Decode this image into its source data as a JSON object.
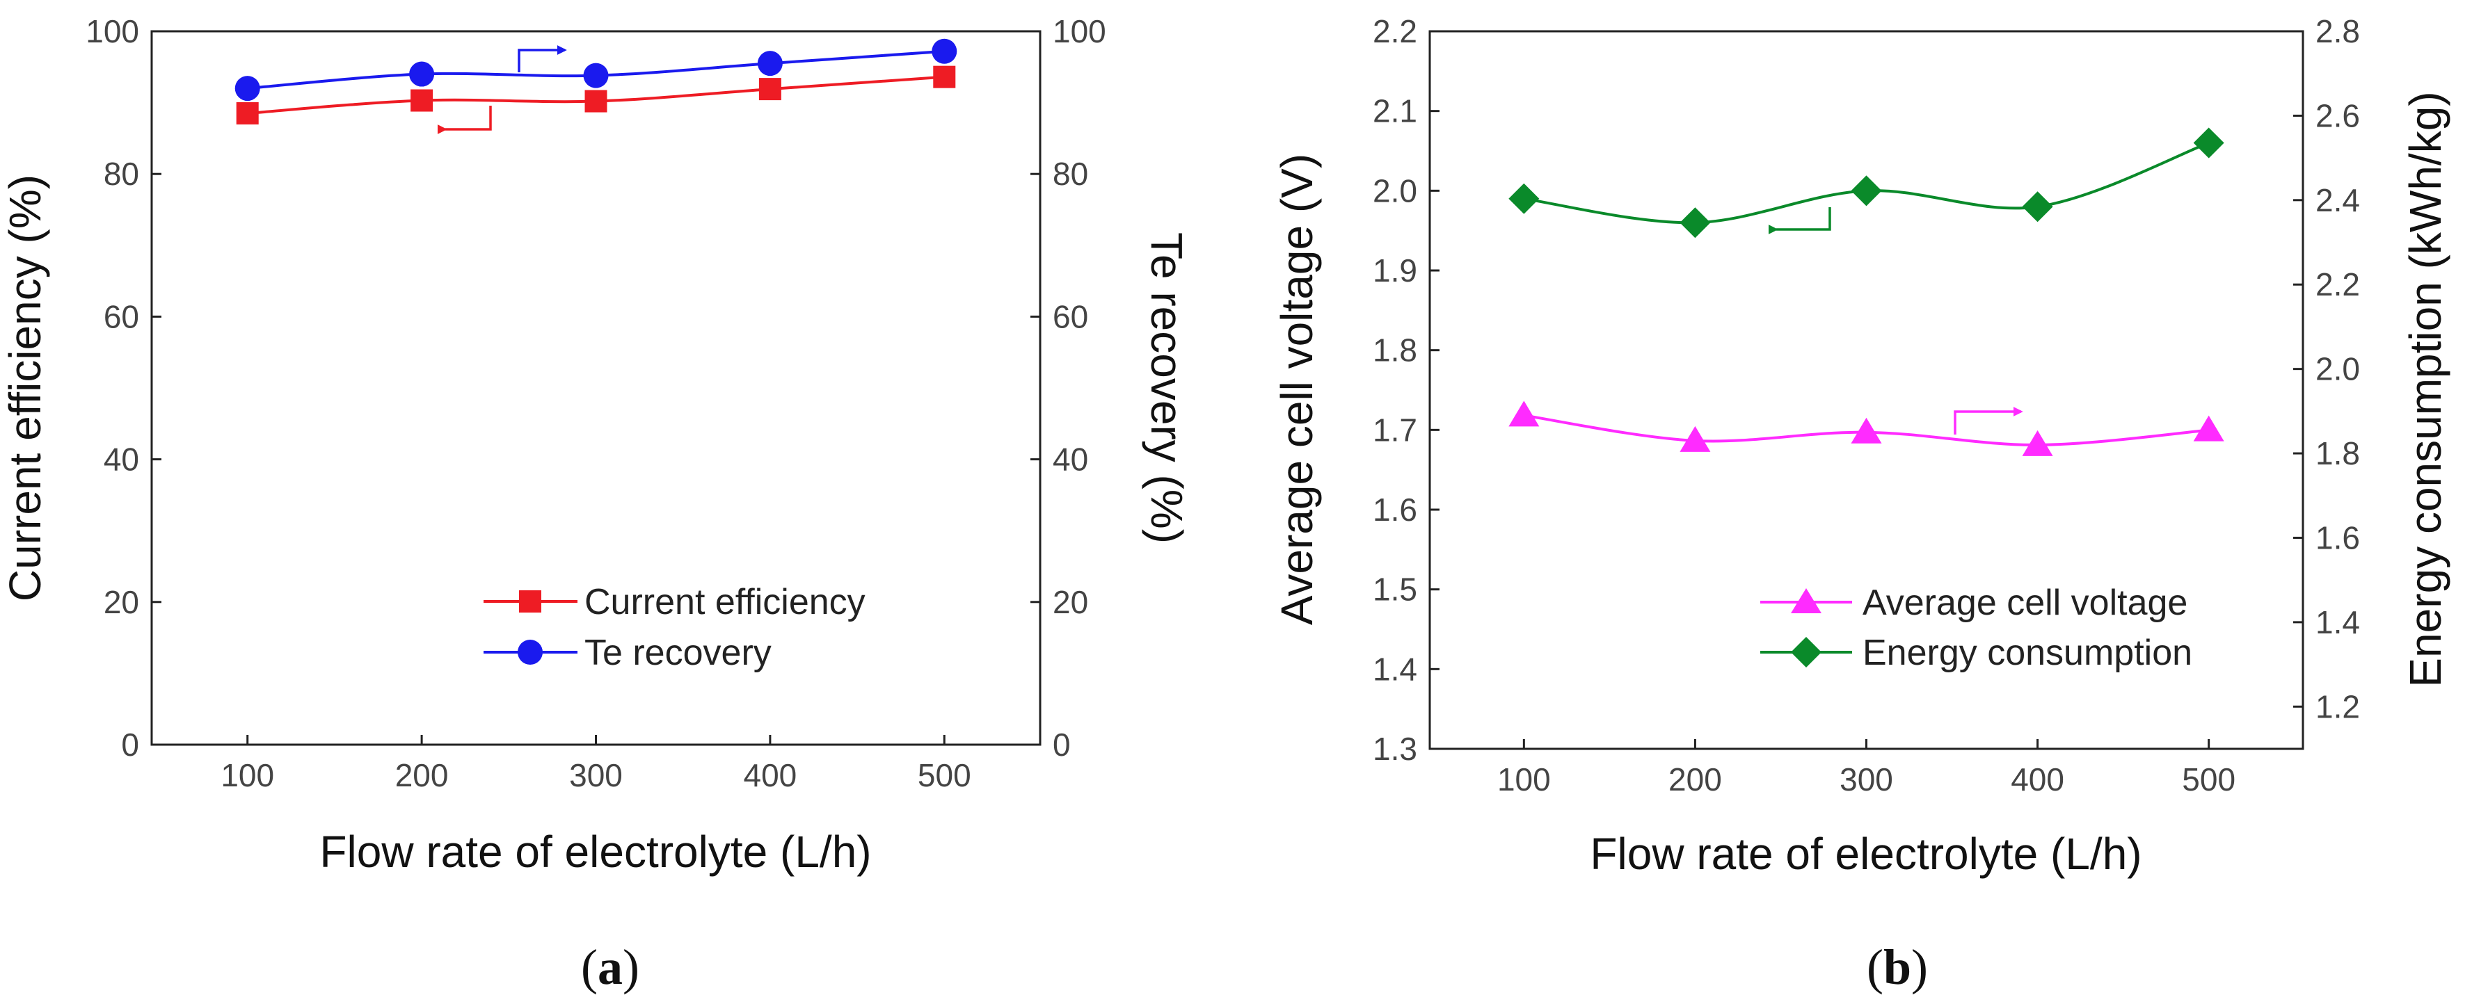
{
  "chart_data": [
    {
      "type": "line",
      "panel": "a",
      "xlabel": "Flow rate of electrolyte (L/h)",
      "ylabel_left": "Current efficiency (%)",
      "ylabel_right": "Te recovery (%)",
      "x": [
        100,
        200,
        300,
        400,
        500
      ],
      "xlim": [
        45,
        555
      ],
      "xticks": [
        100,
        200,
        300,
        400,
        500
      ],
      "ylim_left": [
        0,
        100
      ],
      "ylim_right": [
        0,
        100
      ],
      "yticks_left": [
        0,
        20,
        40,
        60,
        80,
        100
      ],
      "yticks_right": [
        0,
        20,
        40,
        60,
        80,
        100
      ],
      "grid": false,
      "legend_position": "lower-right",
      "series": [
        {
          "name": "Current efficiency",
          "axis": "left",
          "marker": "square",
          "color": "#ee1c24",
          "values": [
            88.5,
            90.3,
            90.2,
            91.9,
            93.6
          ]
        },
        {
          "name": "Te recovery",
          "axis": "right",
          "marker": "circle",
          "color": "#1a1aee",
          "values": [
            92.0,
            94.0,
            93.8,
            95.5,
            97.2
          ]
        }
      ]
    },
    {
      "type": "line",
      "panel": "b",
      "xlabel": "Flow rate of electrolyte (L/h)",
      "ylabel_left": "Average cell voltage (V)",
      "ylabel_right": "Energy consumption (kWh/kg)",
      "x": [
        100,
        200,
        300,
        400,
        500
      ],
      "xlim": [
        45,
        555
      ],
      "xticks": [
        100,
        200,
        300,
        400,
        500
      ],
      "ylim_left": [
        1.3,
        2.2
      ],
      "ylim_right": [
        1.1,
        2.8
      ],
      "yticks_left": [
        "1.3",
        "1.4",
        "1.5",
        "1.6",
        "1.7",
        "1.8",
        "1.9",
        "2.0",
        "2.1",
        "2.2"
      ],
      "yticks_right": [
        "1.2",
        "1.4",
        "1.6",
        "1.8",
        "2.0",
        "2.2",
        "2.4",
        "2.6",
        "2.8"
      ],
      "grid": false,
      "legend_position": "lower-right",
      "series": [
        {
          "name": "Average cell voltage",
          "axis": "right",
          "marker": "triangle",
          "color": "#ff2bff",
          "values": [
            1.89,
            1.83,
            1.85,
            1.82,
            1.855
          ]
        },
        {
          "name": "Energy consumption",
          "axis": "left",
          "marker": "diamond",
          "color": "#0a8a2a",
          "values": [
            1.99,
            1.96,
            2.0,
            1.98,
            2.06
          ]
        }
      ]
    }
  ],
  "panel_labels": [
    "a",
    "b"
  ],
  "icons": {
    "series_arrow": "arrow-icon"
  }
}
